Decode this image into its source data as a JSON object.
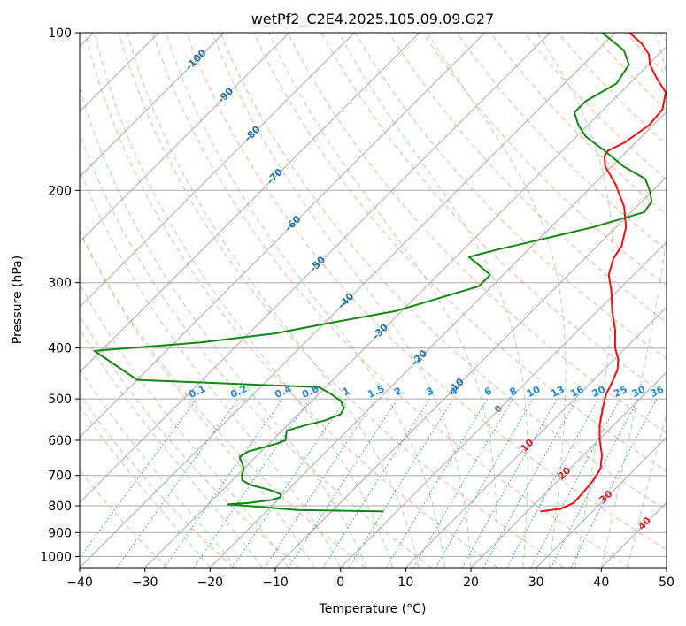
{
  "chart_data": {
    "type": "line",
    "title": "wetPf2_C2E4.2025.105.09.09.G27",
    "xlabel": "Temperature (°C)",
    "ylabel": "Pressure (hPa)",
    "xlim": [
      -40,
      50
    ],
    "ylim": [
      1050,
      100
    ],
    "y_scale": "log",
    "skew": true,
    "grid": true,
    "x_ticks": [
      -40,
      -30,
      -20,
      -10,
      0,
      10,
      20,
      30,
      40,
      50
    ],
    "y_ticks": [
      100,
      200,
      300,
      400,
      500,
      600,
      700,
      800,
      900,
      1000
    ],
    "series": [
      {
        "role": "temperature",
        "color": "#ee1111",
        "points": [
          [
            820,
            22.0
          ],
          [
            810,
            24.8
          ],
          [
            790,
            25.8
          ],
          [
            760,
            25.7
          ],
          [
            720,
            25.4
          ],
          [
            680,
            24.7
          ],
          [
            640,
            22.8
          ],
          [
            600,
            20.2
          ],
          [
            560,
            17.8
          ],
          [
            520,
            15.7
          ],
          [
            490,
            14.1
          ],
          [
            470,
            13.4
          ],
          [
            440,
            12.1
          ],
          [
            420,
            10.6
          ],
          [
            400,
            8.4
          ],
          [
            370,
            5.7
          ],
          [
            340,
            2.3
          ],
          [
            310,
            -1.1
          ],
          [
            290,
            -3.8
          ],
          [
            270,
            -5.6
          ],
          [
            255,
            -6.3
          ],
          [
            235,
            -8.5
          ],
          [
            215,
            -11.9
          ],
          [
            195,
            -16.6
          ],
          [
            180,
            -21.0
          ],
          [
            172,
            -22.7
          ],
          [
            168,
            -23.0
          ],
          [
            162,
            -21.7
          ],
          [
            150,
            -20.6
          ],
          [
            140,
            -21.0
          ],
          [
            130,
            -23.1
          ],
          [
            122,
            -26.7
          ],
          [
            115,
            -29.8
          ],
          [
            110,
            -31.5
          ],
          [
            105,
            -34.2
          ],
          [
            100,
            -37.8
          ]
        ]
      },
      {
        "role": "dewpoint",
        "color": "#118811",
        "points": [
          [
            820,
            -2.0
          ],
          [
            815,
            -15.5
          ],
          [
            805,
            -21.0
          ],
          [
            795,
            -27.0
          ],
          [
            790,
            -24.0
          ],
          [
            780,
            -21.0
          ],
          [
            770,
            -20.0
          ],
          [
            760,
            -20.5
          ],
          [
            745,
            -23.0
          ],
          [
            730,
            -26.5
          ],
          [
            715,
            -28.5
          ],
          [
            700,
            -29.3
          ],
          [
            680,
            -30.0
          ],
          [
            665,
            -31.0
          ],
          [
            645,
            -32.5
          ],
          [
            630,
            -32.0
          ],
          [
            610,
            -29.0
          ],
          [
            600,
            -28.0
          ],
          [
            590,
            -28.5
          ],
          [
            575,
            -29.3
          ],
          [
            560,
            -27.0
          ],
          [
            550,
            -25.0
          ],
          [
            535,
            -23.5
          ],
          [
            520,
            -24.0
          ],
          [
            505,
            -25.5
          ],
          [
            490,
            -28.0
          ],
          [
            475,
            -31.0
          ],
          [
            460,
            -60.0
          ],
          [
            405,
            -71.0
          ],
          [
            390,
            -56.0
          ],
          [
            375,
            -46.0
          ],
          [
            360,
            -40.0
          ],
          [
            340,
            -31.0
          ],
          [
            320,
            -26.0
          ],
          [
            305,
            -22.0
          ],
          [
            290,
            -22.0
          ],
          [
            275,
            -26.0
          ],
          [
            268,
            -28.0
          ],
          [
            260,
            -25.0
          ],
          [
            250,
            -20.5
          ],
          [
            235,
            -13.5
          ],
          [
            220,
            -8.0
          ],
          [
            210,
            -8.5
          ],
          [
            200,
            -10.5
          ],
          [
            190,
            -13.0
          ],
          [
            180,
            -18.2
          ],
          [
            168,
            -23.5
          ],
          [
            158,
            -28.5
          ],
          [
            150,
            -31.5
          ],
          [
            142,
            -34.0
          ],
          [
            135,
            -34.0
          ],
          [
            125,
            -32.0
          ],
          [
            115,
            -33.0
          ],
          [
            108,
            -36.0
          ],
          [
            100,
            -42.0
          ]
        ]
      }
    ],
    "mixing_ratio_labels": [
      "0.1",
      "0.2",
      "0.4",
      "0.6",
      "1",
      "1.5",
      "2",
      "3",
      "4",
      "6",
      "8",
      "10",
      "13",
      "16",
      "20",
      "25",
      "30",
      "36"
    ],
    "mixing_ratio_values": [
      0.1,
      0.2,
      0.4,
      0.6,
      1,
      1.5,
      2,
      3,
      4,
      6,
      8,
      10,
      13,
      16,
      20,
      25,
      30,
      36
    ],
    "isotherm_labels_blue": [
      "-100",
      "-90",
      "-80",
      "-70",
      "-60",
      "-50",
      "-40",
      "-30",
      "-20",
      "-10"
    ],
    "isotherm_labels_red": [
      "0",
      "10",
      "20",
      "30",
      "40"
    ],
    "colors": {
      "mixing_ratio": "#1e88e5",
      "isotherm_label_blue": "#1f6fa8",
      "isotherm_label_red": "#d62728",
      "isotherm_label_zero": "#888888",
      "dry_adiabat": "#f4a582",
      "moist_adiabat": "#8fc98f",
      "grid": "#aaaaaa"
    }
  }
}
